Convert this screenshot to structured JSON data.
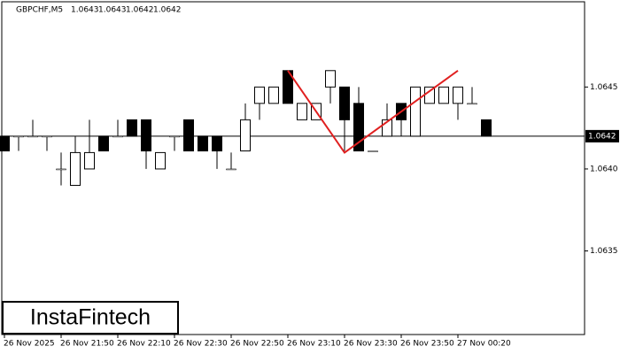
{
  "chart_data": {
    "type": "candlestick",
    "symbol": "GBPCHF,M5",
    "ohlc_header": [
      1.0643,
      1.0643,
      1.0642,
      1.0642
    ],
    "logo": "InstaFintech",
    "categories": [
      "26 Nov 2025",
      null,
      null,
      null,
      "26 Nov 21:50",
      null,
      null,
      null,
      "26 Nov 22:10",
      null,
      null,
      null,
      "26 Nov 22:30",
      null,
      null,
      null,
      "26 Nov 22:50",
      null,
      null,
      null,
      "26 Nov 23:10",
      null,
      null,
      null,
      "26 Nov 23:30",
      null,
      null,
      null,
      "26 Nov 23:50",
      null,
      null,
      null,
      "27 Nov 00:20",
      null,
      null
    ],
    "open": [
      1.0642,
      1.0642,
      1.0642,
      1.0642,
      1.064,
      1.0639,
      1.064,
      1.0642,
      1.0642,
      1.0643,
      1.0643,
      1.064,
      1.0642,
      1.0643,
      1.0642,
      1.0642,
      1.064,
      1.06411,
      1.0644,
      1.0644,
      1.0646,
      1.0643,
      1.0643,
      1.0645,
      1.0645,
      1.0644,
      1.06411,
      1.0642,
      1.0644,
      1.0642,
      1.0644,
      1.0644,
      1.0644,
      1.0644,
      1.0643
    ],
    "high": [
      1.0642,
      1.0642,
      1.0643,
      1.0642,
      1.0641,
      1.0642,
      1.0643,
      1.0642,
      1.0643,
      1.0643,
      1.0643,
      1.0641,
      1.0642,
      1.0643,
      1.0642,
      1.0642,
      1.0641,
      1.0644,
      1.0645,
      1.0645,
      1.0646,
      1.0644,
      1.0644,
      1.0646,
      1.0645,
      1.0645,
      1.06411,
      1.0644,
      1.0644,
      1.0645,
      1.0645,
      1.0645,
      1.0645,
      1.0645,
      1.0643
    ],
    "low": [
      1.06411,
      1.06411,
      1.0642,
      1.06411,
      1.0639,
      1.0639,
      1.064,
      1.06411,
      1.0642,
      1.0642,
      1.064,
      1.064,
      1.06411,
      1.06411,
      1.06411,
      1.064,
      1.064,
      1.06411,
      1.0643,
      1.0644,
      1.0644,
      1.0643,
      1.0643,
      1.0644,
      1.06411,
      1.06411,
      1.06411,
      1.0642,
      1.0642,
      1.0642,
      1.0644,
      1.0644,
      1.0643,
      1.0644,
      1.0642
    ],
    "close": [
      1.06411,
      1.0642,
      1.0642,
      1.0642,
      1.064,
      1.0641,
      1.0641,
      1.06411,
      1.0642,
      1.0642,
      1.06411,
      1.0641,
      1.0642,
      1.06411,
      1.06411,
      1.06411,
      1.064,
      1.0643,
      1.0645,
      1.0645,
      1.0644,
      1.0644,
      1.0644,
      1.0646,
      1.0643,
      1.06411,
      1.06411,
      1.0643,
      1.0643,
      1.0645,
      1.0645,
      1.0645,
      1.0645,
      1.0644,
      1.0642
    ],
    "up_color": "#ffffff",
    "down_color": "#000000",
    "last_price": 1.0642,
    "pattern": {
      "color": "#e02020",
      "x": [
        20,
        24,
        32
      ],
      "values": [
        1.0646,
        1.0641,
        1.0646
      ]
    },
    "ylim": [
      1.06299,
      1.06502
    ],
    "yticks": [
      1.0635,
      {
        "value": 1.064,
        "label": "1.0640"
      },
      1.0645
    ]
  }
}
